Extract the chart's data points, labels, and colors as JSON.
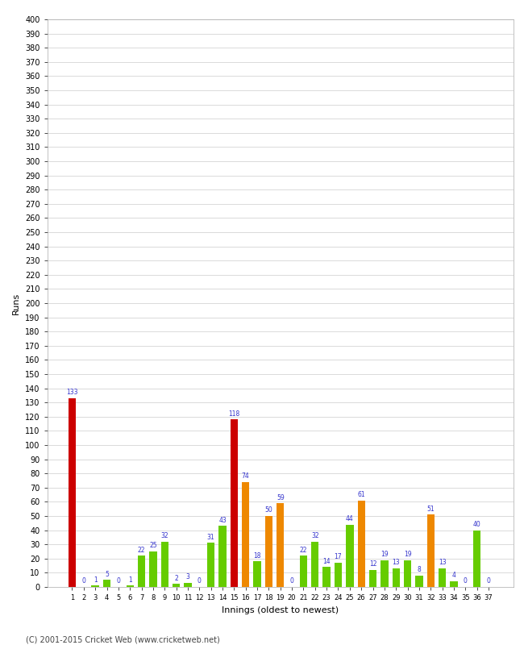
{
  "xlabel": "Innings (oldest to newest)",
  "ylabel": "Runs",
  "innings": [
    1,
    2,
    3,
    4,
    5,
    6,
    7,
    8,
    9,
    10,
    11,
    12,
    13,
    14,
    15,
    16,
    17,
    18,
    19,
    20,
    21,
    22,
    23,
    24,
    25,
    26,
    27,
    28,
    29,
    30,
    31,
    32,
    33,
    34,
    35,
    36,
    37
  ],
  "values": [
    133,
    0,
    1,
    5,
    0,
    1,
    22,
    25,
    32,
    2,
    3,
    0,
    31,
    43,
    118,
    74,
    18,
    50,
    59,
    0,
    22,
    32,
    14,
    17,
    44,
    61,
    12,
    19,
    13,
    19,
    8,
    51,
    13,
    4,
    0,
    40,
    0
  ],
  "colors": [
    "#cc0000",
    "#66cc00",
    "#66cc00",
    "#66cc00",
    "#66cc00",
    "#66cc00",
    "#66cc00",
    "#66cc00",
    "#66cc00",
    "#66cc00",
    "#66cc00",
    "#66cc00",
    "#66cc00",
    "#66cc00",
    "#cc0000",
    "#ee8800",
    "#66cc00",
    "#ee8800",
    "#ee8800",
    "#66cc00",
    "#66cc00",
    "#66cc00",
    "#66cc00",
    "#66cc00",
    "#66cc00",
    "#ee8800",
    "#66cc00",
    "#66cc00",
    "#66cc00",
    "#66cc00",
    "#66cc00",
    "#ee8800",
    "#66cc00",
    "#66cc00",
    "#66cc00",
    "#66cc00",
    "#66cc00"
  ],
  "label_color": "#3333cc",
  "ylim_min": 0,
  "ylim_max": 400,
  "ytick_step": 10,
  "bar_width": 0.65,
  "background_color": "#ffffff",
  "grid_color": "#cccccc",
  "footer": "(C) 2001-2015 Cricket Web (www.cricketweb.net)",
  "label_fontsize": 5.5,
  "axis_label_fontsize": 8,
  "tick_fontsize": 7,
  "xtick_fontsize": 6
}
